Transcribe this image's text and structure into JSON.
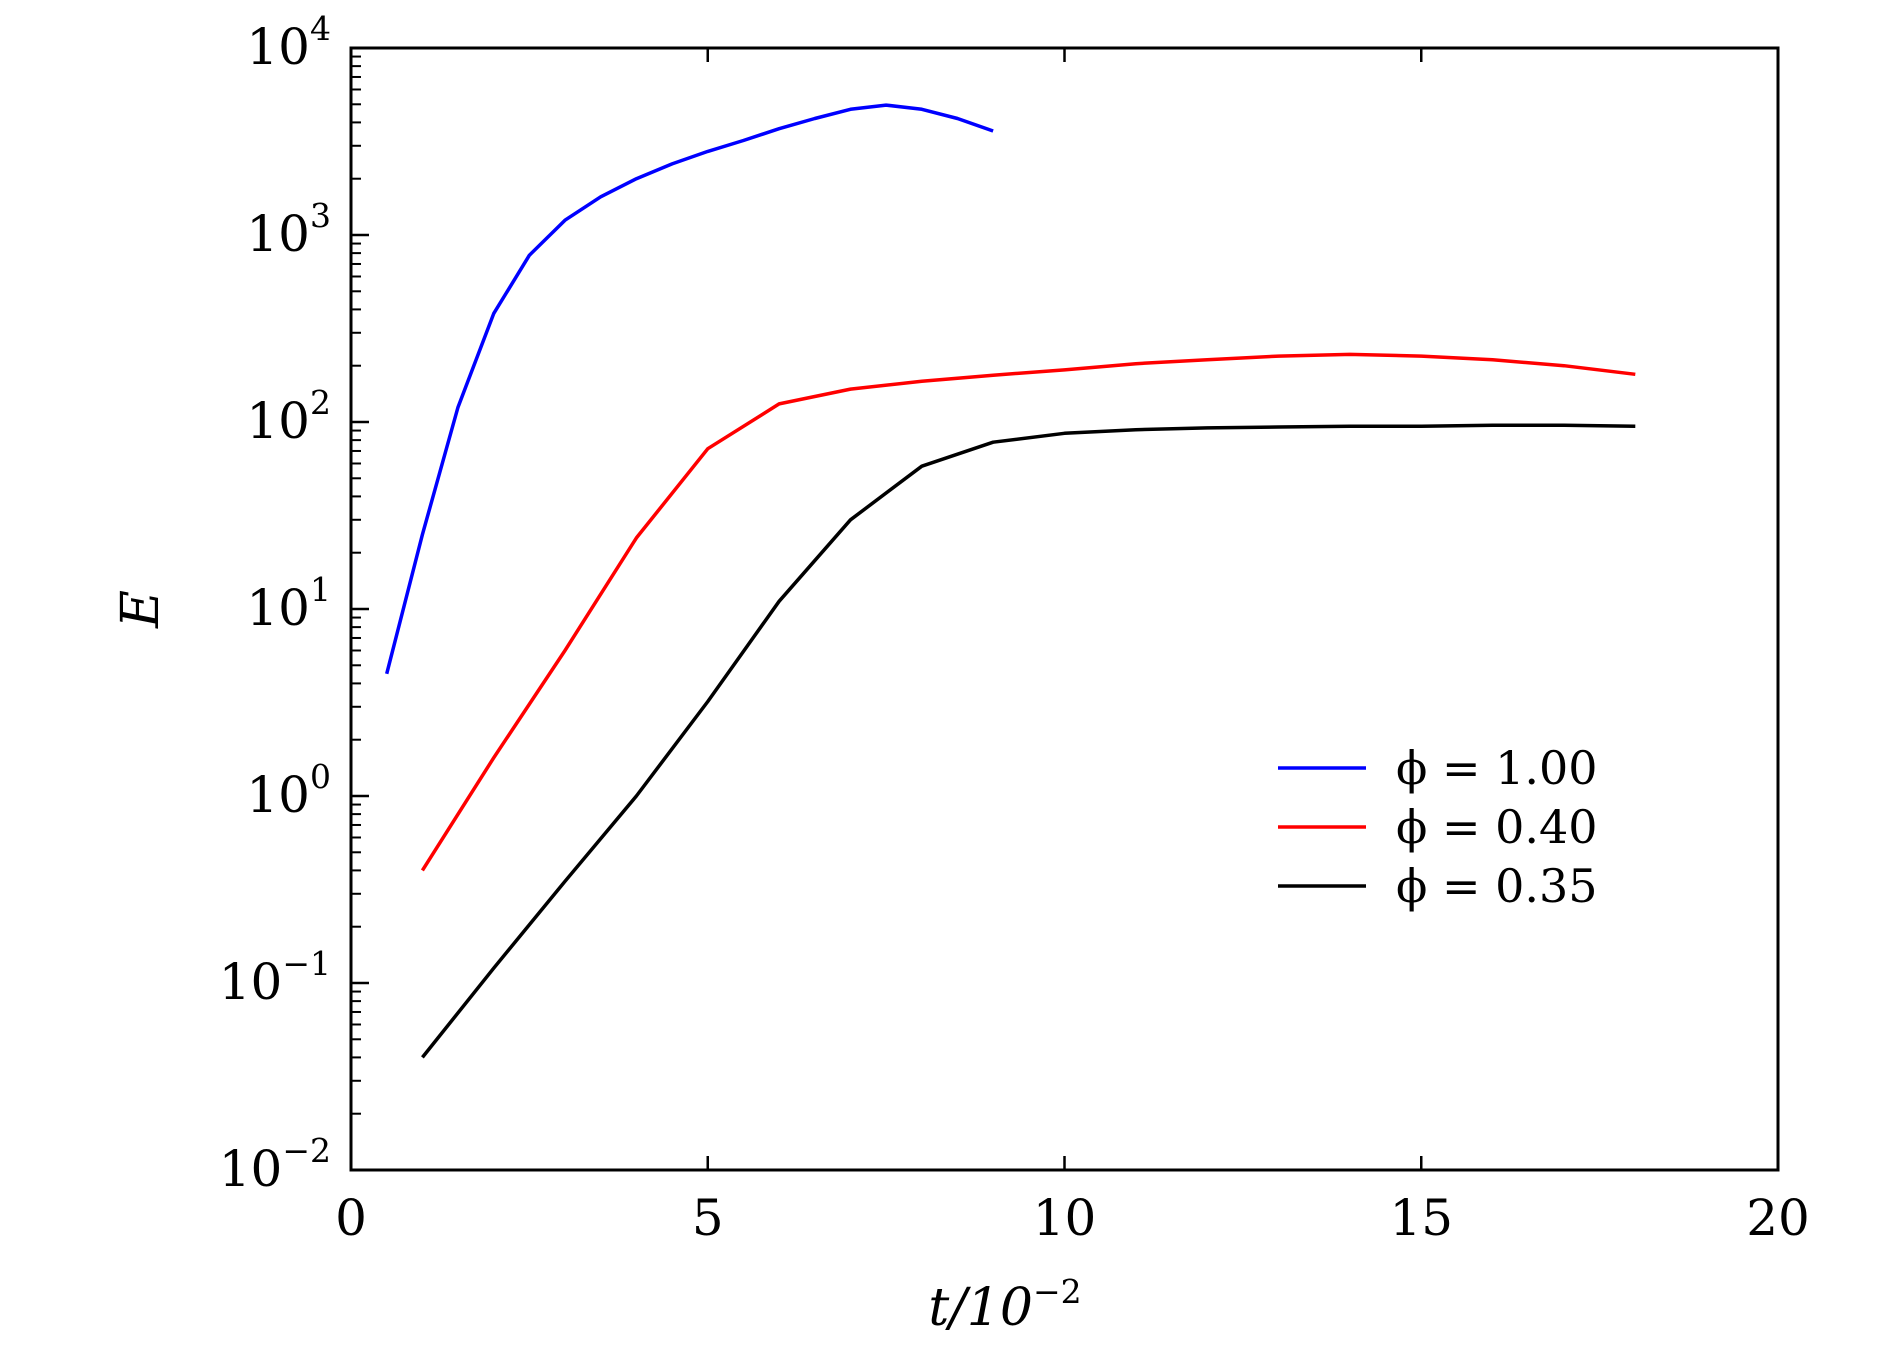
{
  "chart_data": {
    "type": "line",
    "title": "",
    "xlabel": "t/10",
    "xlabel_exp": "−2",
    "ylabel": "E",
    "xlim": [
      0,
      20
    ],
    "ylim": [
      0.01,
      10000
    ],
    "yscale": "log",
    "grid": false,
    "legend_position": "center-right",
    "x_ticks": [
      "0",
      "5",
      "10",
      "15",
      "20"
    ],
    "y_ticks": [
      {
        "base": "10",
        "exp": "−2"
      },
      {
        "base": "10",
        "exp": "−1"
      },
      {
        "base": "10",
        "exp": "0"
      },
      {
        "base": "10",
        "exp": "1"
      },
      {
        "base": "10",
        "exp": "2"
      },
      {
        "base": "10",
        "exp": "3"
      },
      {
        "base": "10",
        "exp": "4"
      }
    ],
    "series": [
      {
        "name": "ϕ = 1.00",
        "color": "#0000ff",
        "x": [
          0.5,
          1.0,
          1.5,
          2.0,
          2.5,
          3.0,
          3.5,
          4.0,
          4.5,
          5.0,
          5.5,
          6.0,
          6.5,
          7.0,
          7.5,
          8.0,
          8.5,
          9.0
        ],
        "y": [
          4.5,
          25,
          120,
          380,
          780,
          1200,
          1600,
          2000,
          2400,
          2800,
          3200,
          3700,
          4200,
          4700,
          4950,
          4700,
          4200,
          3600
        ]
      },
      {
        "name": "ϕ = 0.40",
        "color": "#ff0000",
        "x": [
          1,
          2,
          3,
          4,
          5,
          6,
          7,
          8,
          9,
          10,
          11,
          12,
          13,
          14,
          15,
          16,
          17,
          18
        ],
        "y": [
          0.4,
          1.6,
          6,
          24,
          72,
          125,
          150,
          165,
          178,
          190,
          205,
          215,
          225,
          230,
          225,
          215,
          200,
          180
        ]
      },
      {
        "name": "ϕ = 0.35",
        "color": "#000000",
        "x": [
          1,
          2,
          3,
          4,
          5,
          6,
          7,
          8,
          9,
          10,
          11,
          12,
          13,
          14,
          15,
          16,
          17,
          18
        ],
        "y": [
          0.04,
          0.12,
          0.35,
          1.0,
          3.2,
          11,
          30,
          58,
          78,
          87,
          91,
          93,
          94,
          95,
          95,
          96,
          96,
          95
        ]
      }
    ]
  }
}
